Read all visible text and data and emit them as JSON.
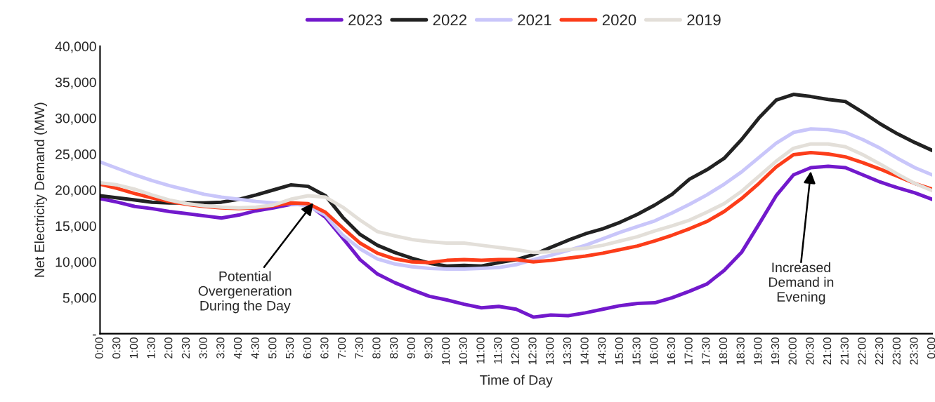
{
  "chart_data": {
    "type": "line",
    "xlabel": "Time of Day",
    "ylabel": "Net Electricity Demand (MW)",
    "x": [
      0,
      0.5,
      1,
      1.5,
      2,
      2.5,
      3,
      3.5,
      4,
      4.5,
      5,
      5.5,
      6,
      6.5,
      7,
      7.5,
      8,
      8.5,
      9,
      9.5,
      10,
      10.5,
      11,
      11.5,
      12,
      12.5,
      13,
      13.5,
      14,
      14.5,
      15,
      15.5,
      16,
      16.5,
      17,
      17.5,
      18,
      18.5,
      19,
      19.5,
      20,
      20.5,
      21,
      21.5,
      22,
      22.5,
      23,
      23.5,
      24
    ],
    "series": [
      {
        "name": "2023",
        "color": "#7219cc",
        "values": [
          18800,
          18300,
          17700,
          17400,
          17000,
          16700,
          16400,
          16100,
          16500,
          17100,
          17500,
          18000,
          18000,
          16200,
          13300,
          10300,
          8300,
          7100,
          6100,
          5200,
          4700,
          4100,
          3600,
          3800,
          3400,
          2300,
          2600,
          2500,
          2900,
          3400,
          3900,
          4200,
          4300,
          5000,
          5900,
          6900,
          8800,
          11300,
          15200,
          19200,
          22100,
          23100,
          23300,
          23100,
          22100,
          21100,
          20300,
          19600,
          18700
        ]
      },
      {
        "name": "2022",
        "color": "#222222",
        "values": [
          19200,
          18900,
          18600,
          18300,
          18200,
          18200,
          18200,
          18300,
          18700,
          19300,
          20000,
          20700,
          20500,
          19200,
          16200,
          13800,
          12300,
          11300,
          10500,
          9800,
          9400,
          9500,
          9400,
          9900,
          10300,
          11000,
          12000,
          13000,
          13900,
          14600,
          15500,
          16600,
          17900,
          19400,
          21500,
          22800,
          24400,
          27000,
          30000,
          32500,
          33300,
          33000,
          32600,
          32300,
          30800,
          29200,
          27800,
          26600,
          25500
        ]
      },
      {
        "name": "2021",
        "color": "#c9c6fa",
        "values": [
          23900,
          23000,
          22100,
          21300,
          20600,
          20000,
          19400,
          19000,
          18700,
          18400,
          18200,
          18100,
          17800,
          16500,
          13700,
          11800,
          10400,
          9700,
          9300,
          9100,
          9000,
          9000,
          9100,
          9200,
          9600,
          10300,
          10900,
          11600,
          12300,
          13200,
          14100,
          14900,
          15700,
          16800,
          18000,
          19300,
          20800,
          22500,
          24500,
          26500,
          28000,
          28500,
          28400,
          28000,
          27000,
          25800,
          24400,
          23100,
          22100
        ]
      },
      {
        "name": "2020",
        "color": "#fc3d1a",
        "values": [
          20800,
          20200,
          19500,
          18900,
          18400,
          18000,
          17700,
          17500,
          17400,
          17500,
          17800,
          18200,
          18100,
          16900,
          14700,
          12600,
          11200,
          10400,
          10000,
          9900,
          10200,
          10300,
          10200,
          10300,
          10300,
          10000,
          10200,
          10500,
          10800,
          11200,
          11700,
          12200,
          12900,
          13700,
          14600,
          15600,
          17000,
          18800,
          20900,
          23200,
          24900,
          25200,
          25000,
          24600,
          23800,
          22900,
          21900,
          20900,
          20100
        ]
      },
      {
        "name": "2019",
        "color": "#e3dfd9",
        "values": [
          21000,
          20700,
          20100,
          19300,
          18600,
          18100,
          17800,
          17600,
          17500,
          17600,
          17900,
          18700,
          19200,
          19000,
          17600,
          15800,
          14200,
          13600,
          13100,
          12800,
          12600,
          12600,
          12300,
          12000,
          11700,
          11300,
          11400,
          11700,
          11900,
          12300,
          12900,
          13500,
          14300,
          15000,
          15800,
          16900,
          18100,
          19800,
          21900,
          24000,
          25800,
          26400,
          26400,
          26000,
          24900,
          23600,
          22200,
          20900,
          19900
        ]
      }
    ],
    "xlim": [
      0,
      24
    ],
    "xticks": [
      {
        "value": 0,
        "label": "0:00"
      },
      {
        "value": 0.5,
        "label": "0:30"
      },
      {
        "value": 1,
        "label": "1:00"
      },
      {
        "value": 1.5,
        "label": "1:30"
      },
      {
        "value": 2,
        "label": "2:00"
      },
      {
        "value": 2.5,
        "label": "2:30"
      },
      {
        "value": 3,
        "label": "3:00"
      },
      {
        "value": 3.5,
        "label": "3:30"
      },
      {
        "value": 4,
        "label": "4:00"
      },
      {
        "value": 4.5,
        "label": "4:30"
      },
      {
        "value": 5,
        "label": "5:00"
      },
      {
        "value": 5.5,
        "label": "5:30"
      },
      {
        "value": 6,
        "label": "6:00"
      },
      {
        "value": 6.5,
        "label": "6:30"
      },
      {
        "value": 7,
        "label": "7:00"
      },
      {
        "value": 7.5,
        "label": "7:30"
      },
      {
        "value": 8,
        "label": "8:00"
      },
      {
        "value": 8.5,
        "label": "8:30"
      },
      {
        "value": 9,
        "label": "9:00"
      },
      {
        "value": 9.5,
        "label": "9:30"
      },
      {
        "value": 10,
        "label": "10:00"
      },
      {
        "value": 10.5,
        "label": "10:30"
      },
      {
        "value": 11,
        "label": "11:00"
      },
      {
        "value": 11.5,
        "label": "11:30"
      },
      {
        "value": 12,
        "label": "12:00"
      },
      {
        "value": 12.5,
        "label": "12:30"
      },
      {
        "value": 13,
        "label": "13:00"
      },
      {
        "value": 13.5,
        "label": "13:30"
      },
      {
        "value": 14,
        "label": "14:00"
      },
      {
        "value": 14.5,
        "label": "14:30"
      },
      {
        "value": 15,
        "label": "15:00"
      },
      {
        "value": 15.5,
        "label": "15:30"
      },
      {
        "value": 16,
        "label": "16:00"
      },
      {
        "value": 16.5,
        "label": "16:30"
      },
      {
        "value": 17,
        "label": "17:00"
      },
      {
        "value": 17.5,
        "label": "17:30"
      },
      {
        "value": 18,
        "label": "18:00"
      },
      {
        "value": 18.5,
        "label": "18:30"
      },
      {
        "value": 19,
        "label": "19:00"
      },
      {
        "value": 19.5,
        "label": "19:30"
      },
      {
        "value": 20,
        "label": "20:00"
      },
      {
        "value": 20.5,
        "label": "20:30"
      },
      {
        "value": 21,
        "label": "21:00"
      },
      {
        "value": 21.5,
        "label": "21:30"
      },
      {
        "value": 22,
        "label": "22:00"
      },
      {
        "value": 22.5,
        "label": "22:30"
      },
      {
        "value": 23,
        "label": "23:00"
      },
      {
        "value": 23.5,
        "label": "23:30"
      },
      {
        "value": 24,
        "label": "0:00"
      }
    ],
    "ylim": [
      0,
      40000
    ],
    "yticks": [
      {
        "value": 0,
        "label": "-"
      },
      {
        "value": 5000,
        "label": "5,000"
      },
      {
        "value": 10000,
        "label": "10,000"
      },
      {
        "value": 15000,
        "label": "15,000"
      },
      {
        "value": 20000,
        "label": "20,000"
      },
      {
        "value": 25000,
        "label": "25,000"
      },
      {
        "value": 30000,
        "label": "30,000"
      },
      {
        "value": 35000,
        "label": "35,000"
      },
      {
        "value": 40000,
        "label": "40,000"
      }
    ],
    "annotations": [
      {
        "text": "Potential\nOvergeneration\nDuring the Day",
        "x": 6.15,
        "y": 18200
      },
      {
        "text": "Increased\nDemand in\nEvening",
        "x": 20.5,
        "y": 22600
      }
    ],
    "legend": "top",
    "grid": false,
    "marker": "none",
    "line_style": "solid"
  }
}
